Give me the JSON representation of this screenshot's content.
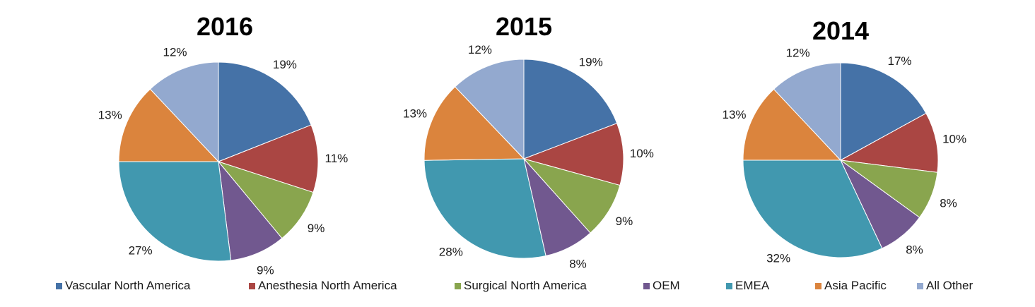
{
  "chart_data": [
    {
      "type": "pie",
      "title": "2016",
      "categories": [
        "Vascular North America",
        "Anesthesia North America",
        "Surgical North America",
        "OEM",
        "EMEA",
        "Asia Pacific",
        "All Other"
      ],
      "values": [
        19,
        11,
        9,
        9,
        27,
        13,
        12
      ],
      "labels": [
        "19%",
        "11%",
        "9%",
        "9%",
        "27%",
        "13%",
        "12%"
      ]
    },
    {
      "type": "pie",
      "title": "2015",
      "categories": [
        "Vascular North America",
        "Anesthesia North America",
        "Surgical North America",
        "OEM",
        "EMEA",
        "Asia Pacific",
        "All Other"
      ],
      "values": [
        19,
        10,
        9,
        8,
        28,
        13,
        12
      ],
      "labels": [
        "19%",
        "10%",
        "9%",
        "8%",
        "28%",
        "13%",
        "12%"
      ]
    },
    {
      "type": "pie",
      "title": "2014",
      "categories": [
        "Vascular North America",
        "Anesthesia North America",
        "Surgical North America",
        "OEM",
        "EMEA",
        "Asia Pacific",
        "All Other"
      ],
      "values": [
        17,
        10,
        8,
        8,
        32,
        13,
        12
      ],
      "labels": [
        "17%",
        "10%",
        "8%",
        "8%",
        "32%",
        "13%",
        "12%"
      ]
    }
  ],
  "legend": {
    "items": [
      {
        "label": "Vascular North America",
        "color": "#4572A7"
      },
      {
        "label": "Anesthesia North America",
        "color": "#AA4643"
      },
      {
        "label": "Surgical North America",
        "color": "#89A54E"
      },
      {
        "label": "OEM",
        "color": "#71588F"
      },
      {
        "label": "EMEA",
        "color": "#4198AF"
      },
      {
        "label": "Asia Pacific",
        "color": "#DB843D"
      },
      {
        "label": "All Other",
        "color": "#93A9CF"
      }
    ]
  }
}
